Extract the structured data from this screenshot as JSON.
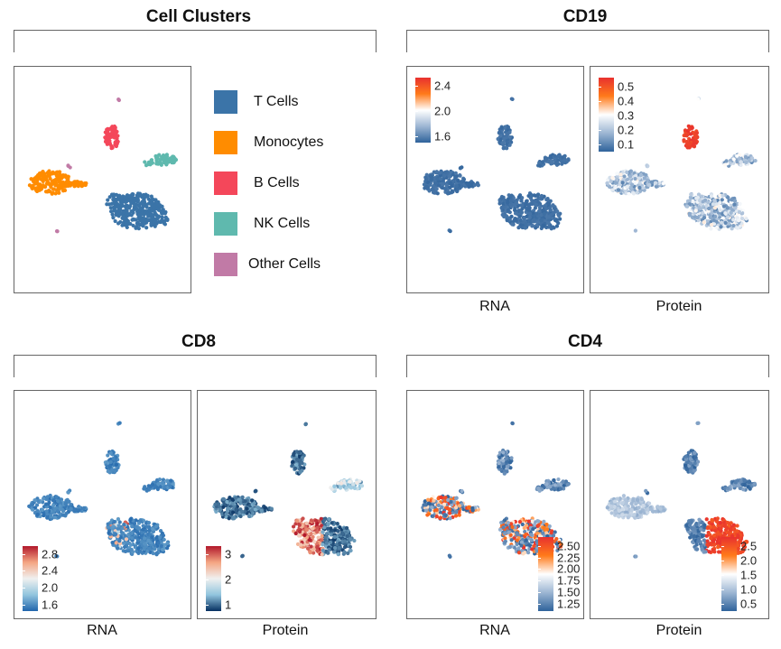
{
  "chart_data": [
    {
      "type": "scatter",
      "title": "Cell Clusters",
      "legend": {
        "placement": "right",
        "entries": [
          {
            "label": "T Cells",
            "color": "#3b74a8"
          },
          {
            "label": "Monocytes",
            "color": "#ff8c00"
          },
          {
            "label": "B Cells",
            "color": "#f4475a"
          },
          {
            "label": "NK Cells",
            "color": "#5fb9ae"
          },
          {
            "label": "Other Cells",
            "color": "#c17aa6"
          }
        ]
      }
    },
    {
      "type": "scatter",
      "title": "CD19",
      "panels": [
        {
          "xlabel": "RNA",
          "colorbar": {
            "ticks": [
              "2.4",
              "2.0",
              "1.6"
            ],
            "range": [
              1.45,
              2.7
            ],
            "placement": "top-left",
            "colors": [
              "#e8312f",
              "#ff7a1a",
              "#ffffff",
              "#9db6d3",
              "#2f639b"
            ]
          }
        },
        {
          "xlabel": "Protein",
          "colorbar": {
            "ticks": [
              "0.5",
              "0.4",
              "0.3",
              "0.2",
              "0.1"
            ],
            "range": [
              0.05,
              0.55
            ],
            "placement": "top-left",
            "colors": [
              "#e8312f",
              "#ff7a1a",
              "#ffffff",
              "#9db6d3",
              "#2f639b"
            ]
          }
        }
      ]
    },
    {
      "type": "scatter",
      "title": "CD8",
      "panels": [
        {
          "xlabel": "RNA",
          "colorbar": {
            "ticks": [
              "2.8",
              "2.4",
              "2.0",
              "1.6"
            ],
            "range": [
              1.45,
              2.9
            ],
            "placement": "bottom-left",
            "colors": [
              "#b2182b",
              "#f4a582",
              "#f0f0f0",
              "#92c5de",
              "#2166ac"
            ]
          }
        },
        {
          "xlabel": "Protein",
          "colorbar": {
            "ticks": [
              "3",
              "2",
              "1"
            ],
            "range": [
              0.2,
              3.2
            ],
            "placement": "bottom-left",
            "colors": [
              "#b2182b",
              "#f4a582",
              "#f0f0f0",
              "#92c5de",
              "#053061"
            ]
          }
        }
      ]
    },
    {
      "type": "scatter",
      "title": "CD4",
      "panels": [
        {
          "xlabel": "RNA",
          "colorbar": {
            "ticks": [
              "2.50",
              "2.25",
              "2.00",
              "1.75",
              "1.50",
              "1.25"
            ],
            "range": [
              1.25,
              2.55
            ],
            "placement": "bottom-right",
            "colors": [
              "#e8312f",
              "#ff7a1a",
              "#ffffff",
              "#9db6d3",
              "#2f639b"
            ]
          }
        },
        {
          "xlabel": "Protein",
          "colorbar": {
            "ticks": [
              "2.5",
              "2.0",
              "1.5",
              "1.0",
              "0.5"
            ],
            "range": [
              0.3,
              2.7
            ],
            "placement": "bottom-right",
            "colors": [
              "#e8312f",
              "#ff7a1a",
              "#ffffff",
              "#9db6d3",
              "#2f639b"
            ]
          }
        }
      ]
    }
  ]
}
